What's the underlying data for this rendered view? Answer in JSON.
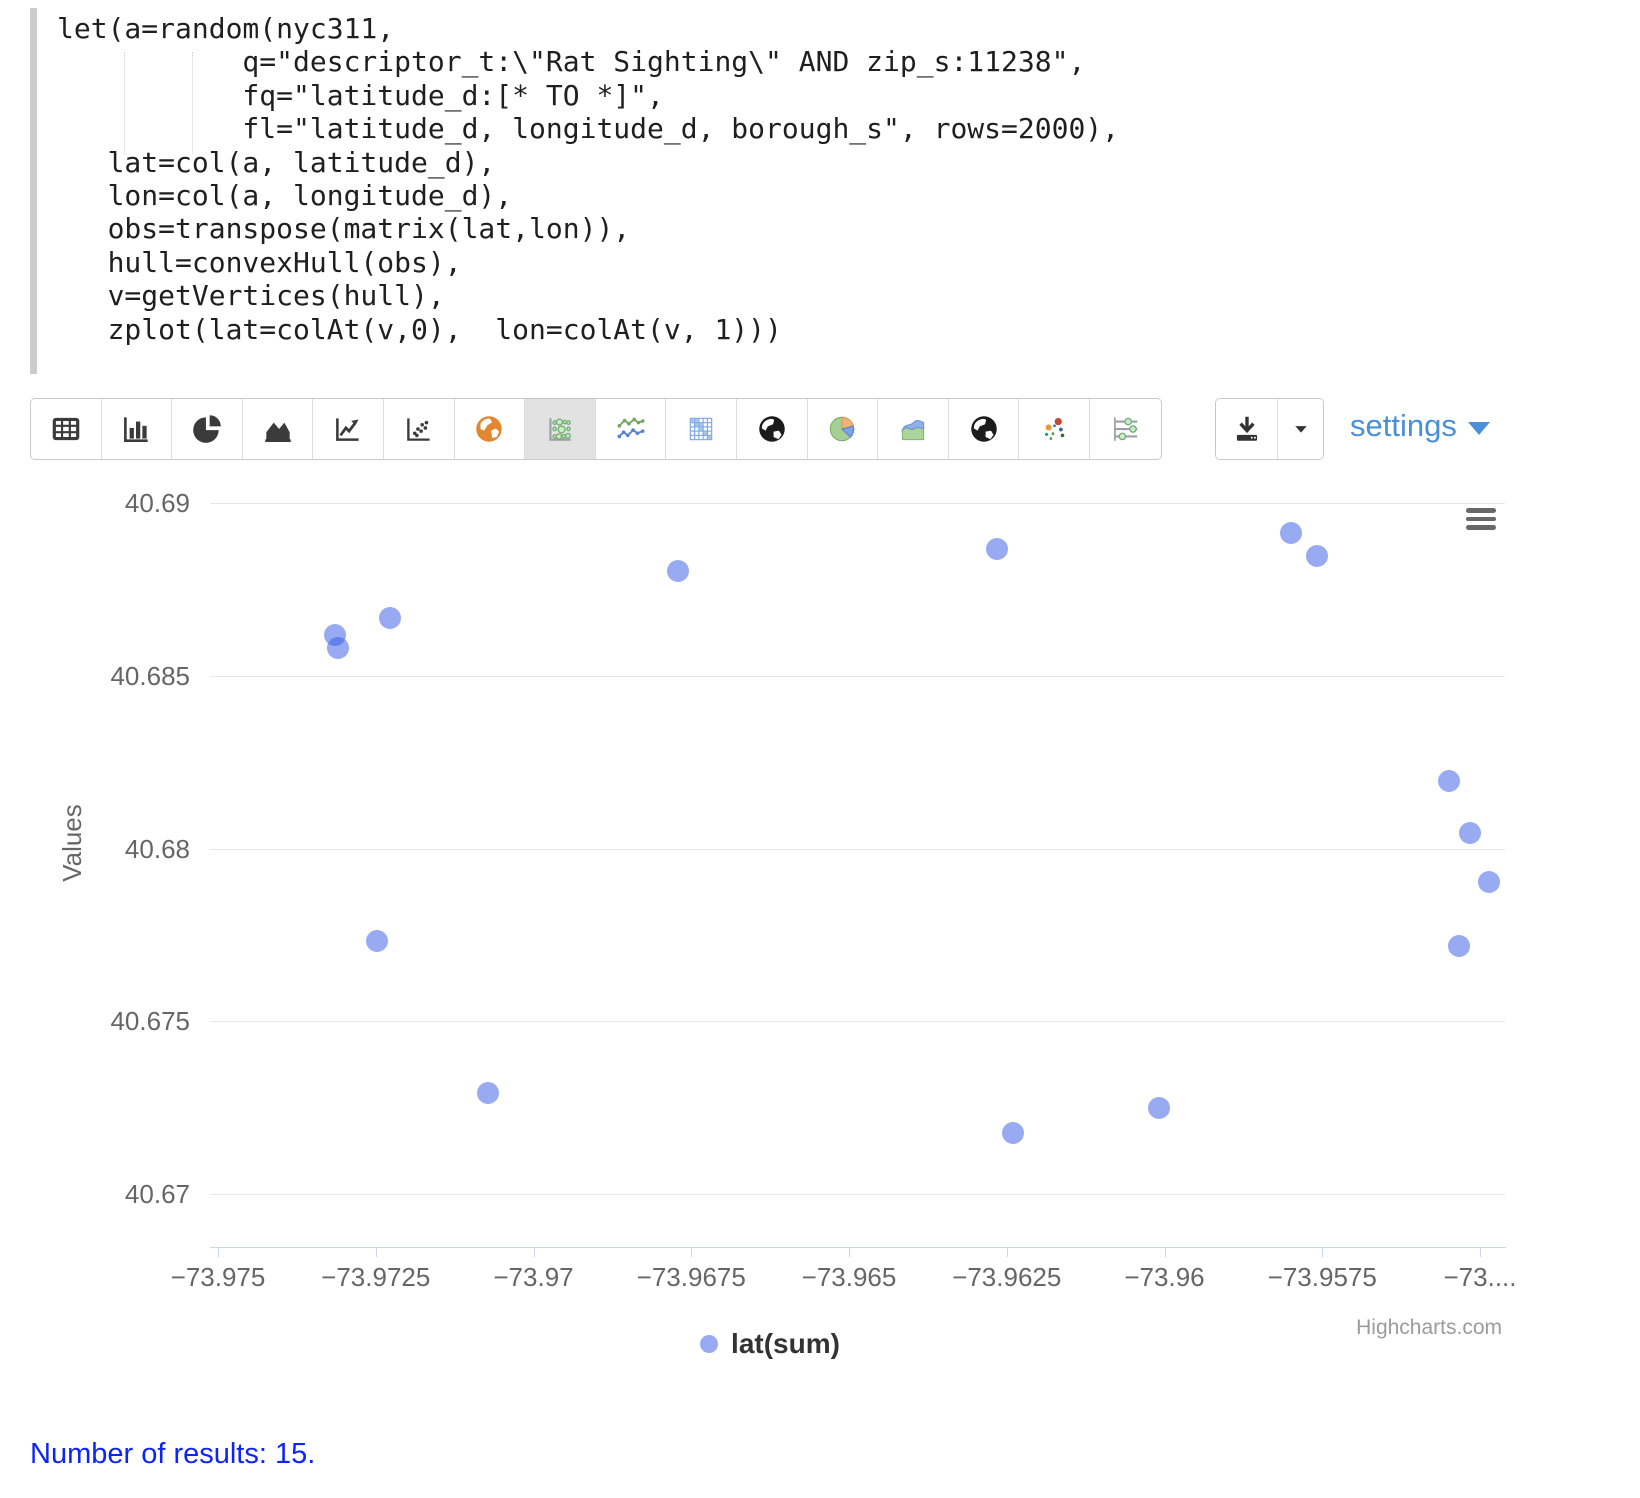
{
  "editor": {
    "code_lines": [
      "let(a=random(nyc311,",
      "           q=\"descriptor_t:\\\"Rat Sighting\\\" AND zip_s:11238\",",
      "           fq=\"latitude_d:[* TO *]\",",
      "           fl=\"latitude_d, longitude_d, borough_s\", rows=2000),",
      "   lat=col(a, latitude_d),",
      "   lon=col(a, longitude_d),",
      "   obs=transpose(matrix(lat,lon)),",
      "   hull=convexHull(obs),",
      "   v=getVertices(hull),",
      "   zplot(lat=colAt(v,0),  lon=colAt(v, 1)))"
    ]
  },
  "toolbar": {
    "chart_type_buttons": [
      {
        "icon": "table-icon",
        "selected": false
      },
      {
        "icon": "bar-chart-icon",
        "selected": false
      },
      {
        "icon": "pie-chart-icon",
        "selected": false
      },
      {
        "icon": "area-chart-icon",
        "selected": false
      },
      {
        "icon": "line-chart-icon",
        "selected": false
      },
      {
        "icon": "scatter-chart-icon",
        "selected": false
      },
      {
        "icon": "map-orange-icon",
        "selected": false
      },
      {
        "icon": "bubble-chart-icon",
        "selected": true
      },
      {
        "icon": "multi-line-chart-icon",
        "selected": false
      },
      {
        "icon": "heatmap-icon",
        "selected": false
      },
      {
        "icon": "globe-icon",
        "selected": false
      },
      {
        "icon": "pie-colored-icon",
        "selected": false
      },
      {
        "icon": "area-colored-icon",
        "selected": false
      },
      {
        "icon": "globe2-icon",
        "selected": false
      },
      {
        "icon": "dot-cloud-icon",
        "selected": false
      },
      {
        "icon": "sliders-icon",
        "selected": false
      }
    ],
    "settings_label": "settings"
  },
  "chart_data": {
    "type": "scatter",
    "title": "",
    "xlabel": "",
    "ylabel": "Values",
    "grid": true,
    "legend_position": "bottom-center",
    "xlim": [
      -73.97513,
      -73.9546
    ],
    "ylim": [
      40.66847,
      40.69038
    ],
    "x_ticks": [
      {
        "v": -73.975,
        "label": "−73.975"
      },
      {
        "v": -73.9725,
        "label": "−73.9725"
      },
      {
        "v": -73.97,
        "label": "−73.97"
      },
      {
        "v": -73.9675,
        "label": "−73.9675"
      },
      {
        "v": -73.965,
        "label": "−73.965"
      },
      {
        "v": -73.9625,
        "label": "−73.9625"
      },
      {
        "v": -73.96,
        "label": "−73.96"
      },
      {
        "v": -73.9575,
        "label": "−73.9575"
      },
      {
        "v": -73.955,
        "label": "−73...."
      }
    ],
    "y_ticks": [
      {
        "v": 40.69,
        "label": "40.69"
      },
      {
        "v": 40.685,
        "label": "40.685"
      },
      {
        "v": 40.68,
        "label": "40.68"
      },
      {
        "v": 40.675,
        "label": "40.675"
      },
      {
        "v": 40.67,
        "label": "40.67"
      }
    ],
    "series": [
      {
        "name": "lat(sum)",
        "color": "rgba(47,86,230,0.5)",
        "points": [
          [
            -73.97315,
            40.68618
          ],
          [
            -73.9731,
            40.6858
          ],
          [
            -73.97227,
            40.68667
          ],
          [
            -73.96771,
            40.68803
          ],
          [
            -73.96265,
            40.68867
          ],
          [
            -73.958,
            40.68913
          ],
          [
            -73.95758,
            40.68847
          ],
          [
            -73.95549,
            40.68195
          ],
          [
            -73.95516,
            40.68045
          ],
          [
            -73.95486,
            40.67903
          ],
          [
            -73.95533,
            40.67718
          ],
          [
            -73.97248,
            40.67732
          ],
          [
            -73.97072,
            40.67292
          ],
          [
            -73.9624,
            40.67177
          ],
          [
            -73.96009,
            40.67249
          ]
        ]
      }
    ],
    "credits": "Highcharts.com"
  },
  "output": {
    "results_text": "Number of results: 15."
  }
}
